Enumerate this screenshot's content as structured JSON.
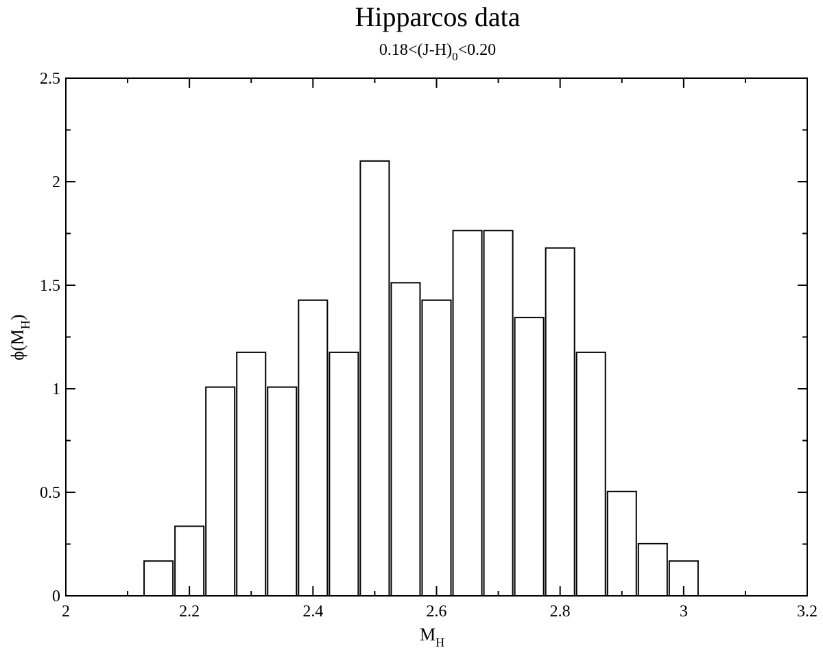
{
  "chart_data": {
    "type": "bar",
    "title": "Hipparcos data",
    "subtitle": {
      "prefix": "0.18<(J-H)",
      "sub": "0",
      "suffix": "<0.20"
    },
    "xlabel": {
      "main": "M",
      "sub": "H"
    },
    "ylabel": {
      "pre": "ϕ(M",
      "sub": "H",
      "post": ")"
    },
    "xlim": [
      2,
      3.2
    ],
    "ylim": [
      0,
      2.5
    ],
    "xticks": [
      2,
      2.2,
      2.4,
      2.6,
      2.8,
      3,
      3.2
    ],
    "xtick_labels": [
      "2",
      "2.2",
      "2.4",
      "2.6",
      "2.8",
      "3",
      "3.2"
    ],
    "yticks": [
      0,
      0.5,
      1,
      1.5,
      2,
      2.5
    ],
    "ytick_labels": [
      "0",
      "0.5",
      "1",
      "1.5",
      "2",
      "2.5"
    ],
    "x_minor_step": 0.1,
    "y_minor_step": 0.25,
    "bin_width": 0.05,
    "grid": false,
    "legend": "none",
    "bar_fill": "#ffffff",
    "bar_stroke": "#000000",
    "bins": [
      {
        "center": 2.15,
        "value": 0.168
      },
      {
        "center": 2.2,
        "value": 0.336
      },
      {
        "center": 2.25,
        "value": 1.008
      },
      {
        "center": 2.3,
        "value": 1.176
      },
      {
        "center": 2.35,
        "value": 1.008
      },
      {
        "center": 2.4,
        "value": 1.428
      },
      {
        "center": 2.45,
        "value": 1.176
      },
      {
        "center": 2.5,
        "value": 2.1
      },
      {
        "center": 2.55,
        "value": 1.512
      },
      {
        "center": 2.6,
        "value": 1.428
      },
      {
        "center": 2.65,
        "value": 1.764
      },
      {
        "center": 2.7,
        "value": 1.764
      },
      {
        "center": 2.75,
        "value": 1.344
      },
      {
        "center": 2.8,
        "value": 1.68
      },
      {
        "center": 2.85,
        "value": 1.176
      },
      {
        "center": 2.9,
        "value": 0.504
      },
      {
        "center": 2.95,
        "value": 0.252
      },
      {
        "center": 3.0,
        "value": 0.168
      }
    ]
  }
}
